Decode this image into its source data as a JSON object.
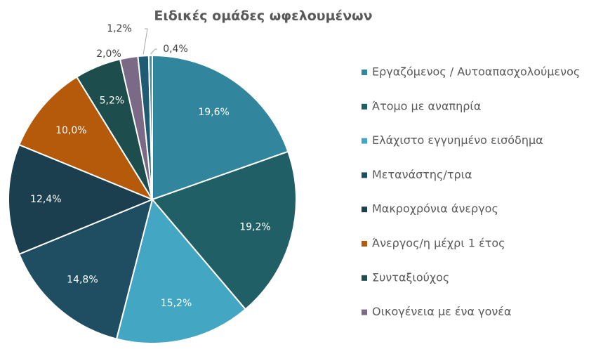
{
  "chart_data": {
    "type": "pie",
    "title": "Ειδικές ομάδες ωφελουμένων",
    "categories": [
      "Εργαζόμενος / Αυτοαπασχολούμενος",
      "Άτομο με αναπηρία",
      "Ελάχιστο εγγυημένο εισόδημα",
      "Μετανάστης/τρια",
      "Μακροχρόνια άνεργος",
      "Άνεργος/η μέχρι 1 έτος",
      "Συνταξιούχος",
      "Οικογένεια με ένα γονέα",
      null,
      null
    ],
    "values": [
      19.6,
      19.2,
      15.2,
      14.8,
      12.4,
      10.0,
      5.2,
      2.0,
      1.2,
      0.4
    ],
    "value_labels": [
      "19,6%",
      "19,2%",
      "15,2%",
      "14,8%",
      "12,4%",
      "10,0%",
      "5,2%",
      "2,0%",
      "1,2%",
      "0,4%"
    ],
    "colors": [
      "#31859c",
      "#215f66",
      "#43a7c4",
      "#1f4e63",
      "#1b3f4f",
      "#b55a0a",
      "#1d4d4d",
      "#7b6a86",
      "#1f5c74",
      "#3e8fa0"
    ],
    "legend": "right"
  }
}
